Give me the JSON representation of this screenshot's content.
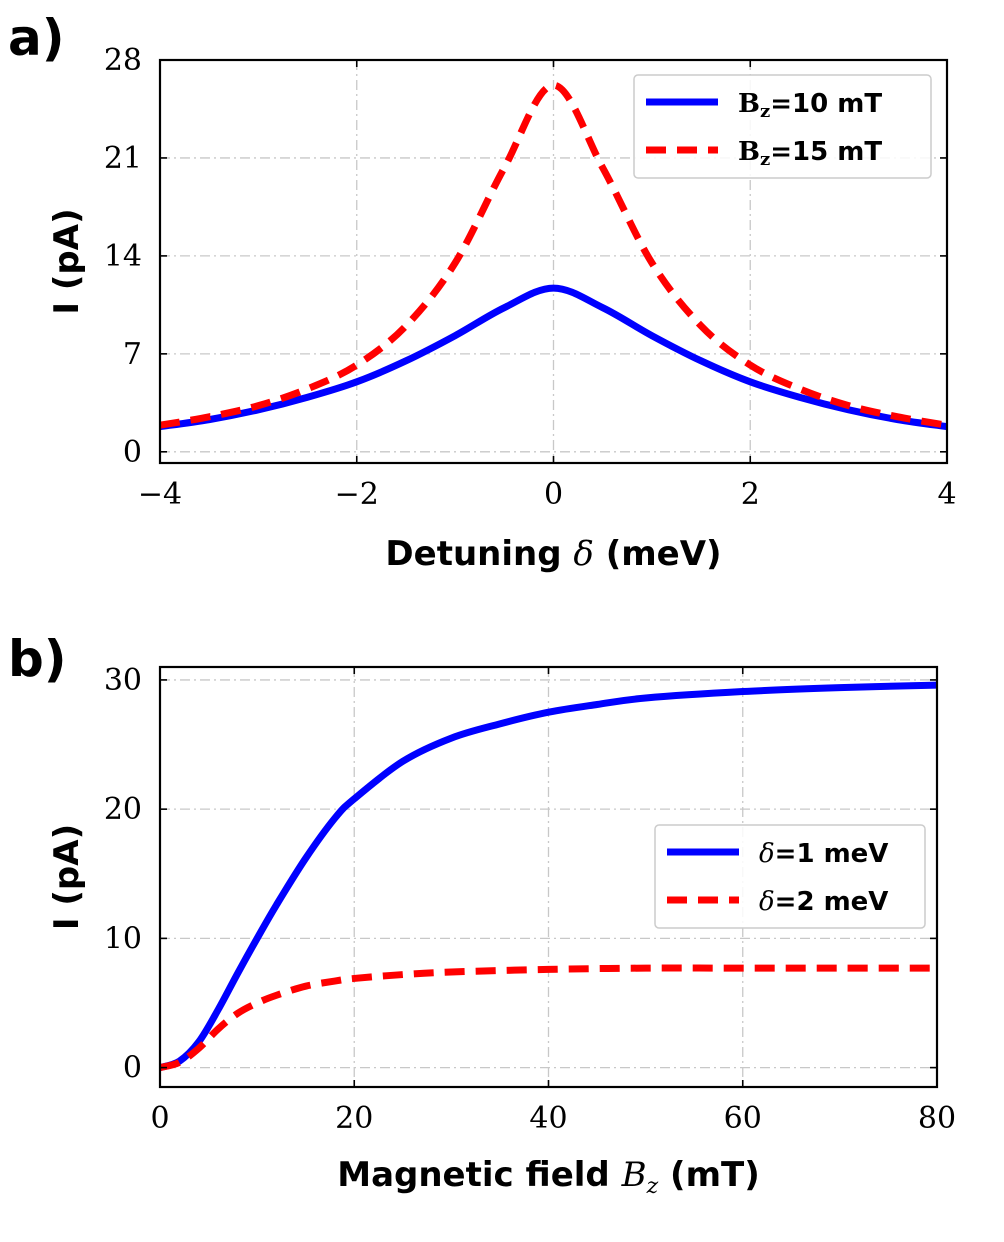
{
  "chart_data": [
    {
      "type": "line",
      "panel_label": "a)",
      "xlabel_prefix": "Detuning",
      "xlabel_symbol": "δ",
      "xlabel_suffix": "(meV)",
      "ylabel": "I (pA)",
      "xlim": [
        -4,
        4
      ],
      "ylim": [
        -0.8,
        28
      ],
      "xticks": [
        -4,
        -2,
        0,
        2,
        4
      ],
      "xtick_labels": [
        "−4",
        "−2",
        "0",
        "2",
        "4"
      ],
      "yticks": [
        0,
        7,
        14,
        21,
        28
      ],
      "ytick_labels": [
        "0",
        "7",
        "14",
        "21",
        "28"
      ],
      "grid": true,
      "legend_position": "top-right",
      "series": [
        {
          "name": "Bz=10 mT",
          "label_main": "B",
          "label_sub": "z",
          "label_rest": "=10 mT",
          "color": "#0000ff",
          "style": "solid",
          "x": [
            -4,
            -3.5,
            -3,
            -2.5,
            -2,
            -1.5,
            -1,
            -0.5,
            0,
            0.5,
            1,
            1.5,
            2,
            2.5,
            3,
            3.5,
            4
          ],
          "values": [
            1.8,
            2.3,
            3.0,
            3.9,
            5.0,
            6.5,
            8.3,
            10.3,
            11.7,
            10.3,
            8.3,
            6.5,
            5.0,
            3.9,
            3.0,
            2.3,
            1.8
          ]
        },
        {
          "name": "Bz=15 mT",
          "label_main": "B",
          "label_sub": "z",
          "label_rest": "=15 mT",
          "color": "#ff0000",
          "style": "dashed",
          "x": [
            -4,
            -3.5,
            -3,
            -2.5,
            -2,
            -1.5,
            -1,
            -0.5,
            0,
            0.5,
            1,
            1.5,
            2,
            2.5,
            3,
            3.5,
            4
          ],
          "values": [
            1.9,
            2.5,
            3.3,
            4.5,
            6.2,
            9.0,
            13.5,
            20.3,
            26.2,
            20.3,
            13.5,
            9.0,
            6.2,
            4.5,
            3.3,
            2.5,
            1.9
          ]
        }
      ]
    },
    {
      "type": "line",
      "panel_label": "b)",
      "xlabel_prefix": "Magnetic field",
      "xlabel_symbol": "B",
      "xlabel_sub": "z",
      "xlabel_suffix": "(mT)",
      "ylabel": "I (pA)",
      "xlim": [
        0,
        80
      ],
      "ylim": [
        -1.5,
        31
      ],
      "xticks": [
        0,
        20,
        40,
        60,
        80
      ],
      "xtick_labels": [
        "0",
        "20",
        "40",
        "60",
        "80"
      ],
      "yticks": [
        0,
        10,
        20,
        30
      ],
      "ytick_labels": [
        "0",
        "10",
        "20",
        "30"
      ],
      "grid": true,
      "legend_position": "center-right",
      "series": [
        {
          "name": "δ=1 meV",
          "label_main": "δ",
          "label_rest": "=1 meV",
          "color": "#0000ff",
          "style": "solid",
          "x": [
            0,
            2,
            4,
            6,
            8,
            10,
            12,
            15,
            18,
            20,
            25,
            30,
            35,
            40,
            45,
            50,
            60,
            70,
            80
          ],
          "values": [
            0,
            0.5,
            2.0,
            4.5,
            7.3,
            10.0,
            12.6,
            16.2,
            19.3,
            20.8,
            23.7,
            25.5,
            26.6,
            27.5,
            28.1,
            28.6,
            29.1,
            29.4,
            29.6
          ]
        },
        {
          "name": "δ=2 meV",
          "label_main": "δ",
          "label_rest": "=2 meV",
          "color": "#ff0000",
          "style": "dashed",
          "x": [
            0,
            2,
            4,
            6,
            8,
            10,
            12,
            15,
            18,
            20,
            25,
            30,
            40,
            50,
            60,
            70,
            80
          ],
          "values": [
            0,
            0.4,
            1.5,
            3.0,
            4.2,
            5.0,
            5.6,
            6.3,
            6.7,
            6.9,
            7.2,
            7.4,
            7.6,
            7.7,
            7.7,
            7.7,
            7.7
          ]
        }
      ]
    }
  ]
}
